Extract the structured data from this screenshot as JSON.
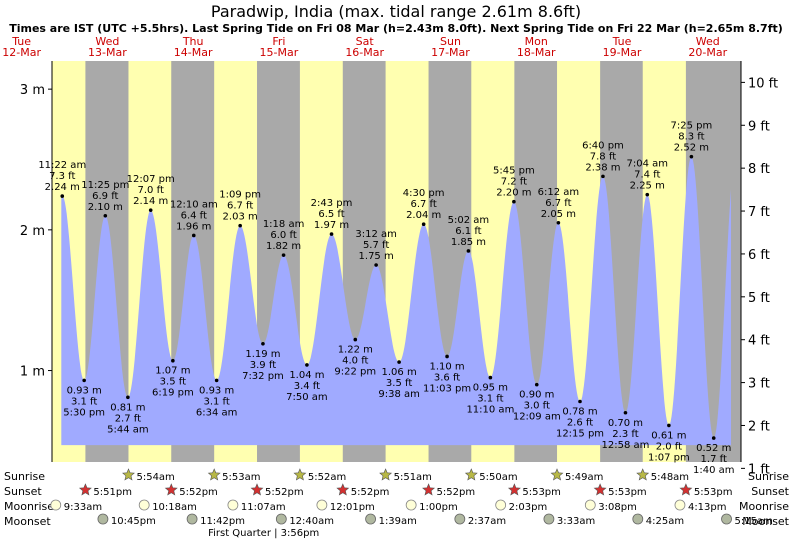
{
  "header": {
    "title": "Paradwip, India (max. tidal range 2.61m 8.6ft)",
    "subtitle": "Times are IST (UTC +5.5hrs). Last Spring Tide on Fri 08 Mar (h=2.43m 8.0ft). Next Spring Tide on Fri 22 Mar (h=2.65m 8.7ft)"
  },
  "colors": {
    "day": "#ffffb0",
    "night": "#a9a9a9",
    "tide": "#a0aaff",
    "day_label": "#cc0000",
    "sun_star": "#b8b846",
    "sunset_star": "#d43030",
    "moonrise": "#ffffd8",
    "moonset": "#b0b8a0"
  },
  "chart_data": {
    "type": "area",
    "title": "Paradwip, India (max. tidal range 2.61m 8.6ft)",
    "x_unit": "hours since 12-Mar 00:00",
    "xlim": [
      8.5,
      201.3
    ],
    "ylim_m": [
      0.35,
      3.2
    ],
    "y_ticks_m": [
      1,
      2,
      3
    ],
    "y_tick_labels": [
      "1 m",
      "2 m",
      "3 m"
    ],
    "y2_ticks_ft": [
      1,
      2,
      3,
      4,
      5,
      6,
      7,
      8,
      9,
      10
    ],
    "y2_tick_labels": [
      "1 ft",
      "2 ft",
      "3 ft",
      "4 ft",
      "5 ft",
      "6 ft",
      "7 ft",
      "8 ft",
      "9 ft",
      "10 ft"
    ],
    "days": [
      {
        "dow": "Tue",
        "date": "12-Mar"
      },
      {
        "dow": "Wed",
        "date": "13-Mar"
      },
      {
        "dow": "Thu",
        "date": "14-Mar"
      },
      {
        "dow": "Fri",
        "date": "15-Mar"
      },
      {
        "dow": "Sat",
        "date": "16-Mar"
      },
      {
        "dow": "Sun",
        "date": "17-Mar"
      },
      {
        "dow": "Mon",
        "date": "18-Mar"
      },
      {
        "dow": "Tue",
        "date": "19-Mar"
      },
      {
        "dow": "Wed",
        "date": "20-Mar"
      }
    ],
    "tides": [
      {
        "t": 11.37,
        "h": 2.24,
        "type": "high",
        "time": "11:22 am",
        "ft": "7.3 ft",
        "m": "2.24 m"
      },
      {
        "t": 17.5,
        "h": 0.93,
        "type": "low",
        "time": "5:30 pm",
        "ft": "3.1 ft",
        "m": "0.93 m"
      },
      {
        "t": 23.42,
        "h": 2.1,
        "type": "high",
        "time": "11:25 pm",
        "ft": "6.9 ft",
        "m": "2.10 m"
      },
      {
        "t": 29.73,
        "h": 0.81,
        "type": "low",
        "time": "5:44 am",
        "ft": "2.7 ft",
        "m": "0.81 m"
      },
      {
        "t": 36.12,
        "h": 2.14,
        "type": "high",
        "time": "12:07 pm",
        "ft": "7.0 ft",
        "m": "2.14 m"
      },
      {
        "t": 42.32,
        "h": 1.07,
        "type": "low",
        "time": "6:19 pm",
        "ft": "3.5 ft",
        "m": "1.07 m"
      },
      {
        "t": 48.17,
        "h": 1.96,
        "type": "high",
        "time": "12:10 am",
        "ft": "6.4 ft",
        "m": "1.96 m"
      },
      {
        "t": 54.57,
        "h": 0.93,
        "type": "low",
        "time": "6:34 am",
        "ft": "3.1 ft",
        "m": "0.93 m"
      },
      {
        "t": 61.15,
        "h": 2.03,
        "type": "high",
        "time": "1:09 pm",
        "ft": "6.7 ft",
        "m": "2.03 m"
      },
      {
        "t": 67.53,
        "h": 1.19,
        "type": "low",
        "time": "7:32 pm",
        "ft": "3.9 ft",
        "m": "1.19 m"
      },
      {
        "t": 73.3,
        "h": 1.82,
        "type": "high",
        "time": "1:18 am",
        "ft": "6.0 ft",
        "m": "1.82 m"
      },
      {
        "t": 79.83,
        "h": 1.04,
        "type": "low",
        "time": "7:50 am",
        "ft": "3.4 ft",
        "m": "1.04 m"
      },
      {
        "t": 86.72,
        "h": 1.97,
        "type": "high",
        "time": "2:43 pm",
        "ft": "6.5 ft",
        "m": "1.97 m"
      },
      {
        "t": 93.37,
        "h": 1.22,
        "type": "low",
        "time": "9:22 pm",
        "ft": "4.0 ft",
        "m": "1.22 m"
      },
      {
        "t": 99.2,
        "h": 1.75,
        "type": "high",
        "time": "3:12 am",
        "ft": "5.7 ft",
        "m": "1.75 m"
      },
      {
        "t": 105.63,
        "h": 1.06,
        "type": "low",
        "time": "9:38 am",
        "ft": "3.5 ft",
        "m": "1.06 m"
      },
      {
        "t": 112.5,
        "h": 2.04,
        "type": "high",
        "time": "4:30 pm",
        "ft": "6.7 ft",
        "m": "2.04 m"
      },
      {
        "t": 119.05,
        "h": 1.1,
        "type": "low",
        "time": "11:03 pm",
        "ft": "3.6 ft",
        "m": "1.10 m"
      },
      {
        "t": 125.03,
        "h": 1.85,
        "type": "high",
        "time": "5:02 am",
        "ft": "6.1 ft",
        "m": "1.85 m"
      },
      {
        "t": 131.17,
        "h": 0.95,
        "type": "low",
        "time": "11:10 am",
        "ft": "3.1 ft",
        "m": "0.95 m"
      },
      {
        "t": 137.75,
        "h": 2.2,
        "type": "high",
        "time": "5:45 pm",
        "ft": "7.2 ft",
        "m": "2.20 m"
      },
      {
        "t": 144.15,
        "h": 0.9,
        "type": "low",
        "time": "12:09 am",
        "ft": "3.0 ft",
        "m": "0.90 m"
      },
      {
        "t": 150.2,
        "h": 2.05,
        "type": "high",
        "time": "6:12 am",
        "ft": "6.7 ft",
        "m": "2.05 m"
      },
      {
        "t": 156.25,
        "h": 0.78,
        "type": "low",
        "time": "12:15 pm",
        "ft": "2.6 ft",
        "m": "0.78 m"
      },
      {
        "t": 162.67,
        "h": 2.38,
        "type": "high",
        "time": "6:40 pm",
        "ft": "7.8 ft",
        "m": "2.38 m"
      },
      {
        "t": 168.97,
        "h": 0.7,
        "type": "low",
        "time": "12:58 am",
        "ft": "2.3 ft",
        "m": "0.70 m"
      },
      {
        "t": 175.07,
        "h": 2.25,
        "type": "high",
        "time": "7:04 am",
        "ft": "7.4 ft",
        "m": "2.25 m"
      },
      {
        "t": 181.12,
        "h": 0.61,
        "type": "low",
        "time": "1:07 pm",
        "ft": "2.0 ft",
        "m": "0.61 m"
      },
      {
        "t": 187.42,
        "h": 2.52,
        "type": "high",
        "time": "7:25 pm",
        "ft": "8.3 ft",
        "m": "2.52 m"
      },
      {
        "t": 193.67,
        "h": 0.52,
        "type": "low",
        "time": "1:40 am",
        "ft": "1.7 ft",
        "m": "0.52 m"
      }
    ],
    "sunrise": [
      {
        "t": 29.9,
        "label": "5:54am"
      },
      {
        "t": 53.88,
        "label": "5:53am"
      },
      {
        "t": 77.87,
        "label": "5:52am"
      },
      {
        "t": 101.85,
        "label": "5:51am"
      },
      {
        "t": 125.83,
        "label": "5:50am"
      },
      {
        "t": 149.82,
        "label": "5:49am"
      },
      {
        "t": 173.8,
        "label": "5:48am"
      }
    ],
    "sunset": [
      {
        "t": 17.85,
        "label": "5:51pm"
      },
      {
        "t": 41.87,
        "label": "5:52pm"
      },
      {
        "t": 65.87,
        "label": "5:52pm"
      },
      {
        "t": 89.87,
        "label": "5:52pm"
      },
      {
        "t": 113.87,
        "label": "5:52pm"
      },
      {
        "t": 137.88,
        "label": "5:53pm"
      },
      {
        "t": 161.88,
        "label": "5:53pm"
      },
      {
        "t": 185.88,
        "label": "5:53pm"
      }
    ],
    "moonrise": [
      {
        "t": 9.55,
        "label": "9:33am"
      },
      {
        "t": 34.3,
        "label": "10:18am"
      },
      {
        "t": 59.12,
        "label": "11:07am"
      },
      {
        "t": 84.02,
        "label": "12:01pm"
      },
      {
        "t": 109.0,
        "label": "1:00pm"
      },
      {
        "t": 134.05,
        "label": "2:03pm"
      },
      {
        "t": 159.13,
        "label": "3:08pm"
      },
      {
        "t": 184.22,
        "label": "4:13pm"
      }
    ],
    "moonset": [
      {
        "t": 22.75,
        "label": "10:45pm"
      },
      {
        "t": 47.7,
        "label": "11:42pm"
      },
      {
        "t": 72.67,
        "label": "12:40am"
      },
      {
        "t": 97.65,
        "label": "1:39am"
      },
      {
        "t": 122.62,
        "label": "2:37am"
      },
      {
        "t": 147.55,
        "label": "3:33am"
      },
      {
        "t": 172.42,
        "label": "4:25am"
      },
      {
        "t": 197.25,
        "label": "5:15am"
      }
    ],
    "moon_phase": {
      "t": 63.93,
      "label": "First Quarter | 3:56pm"
    }
  },
  "rows": {
    "sunrise": "Sunrise",
    "sunset": "Sunset",
    "moonrise": "Moonrise",
    "moonset": "Moonset"
  }
}
